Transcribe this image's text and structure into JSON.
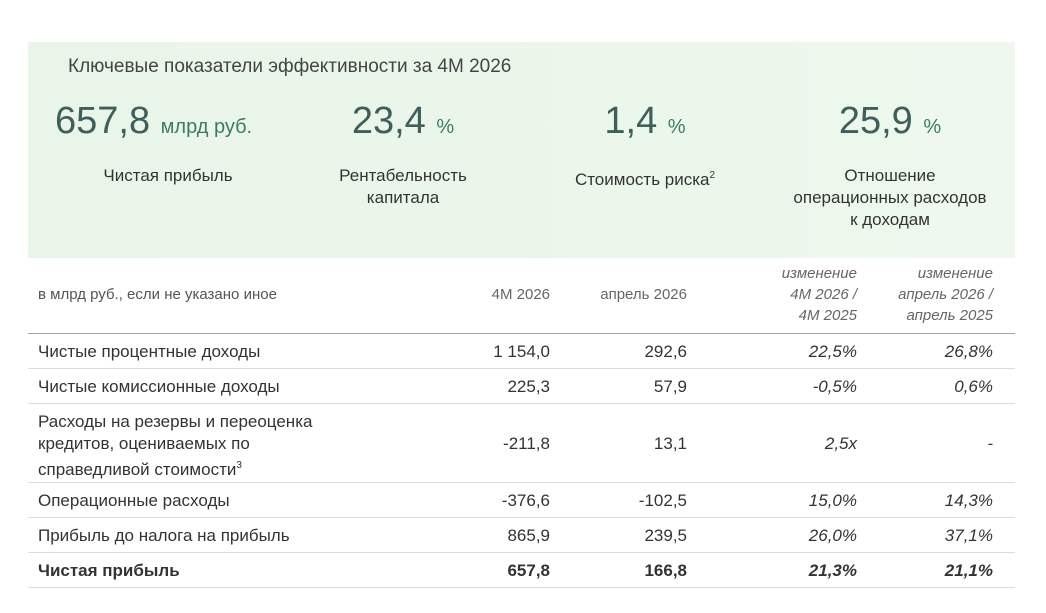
{
  "header": {
    "title": "Ключевые показатели эффективности за 4М 2026"
  },
  "kpis": [
    {
      "value": "657,8",
      "unit": "млрд руб.",
      "caption": [
        "Чистая прибыль"
      ]
    },
    {
      "value": "23,4",
      "unit": "%",
      "caption": [
        "Рентабельность",
        "капитала"
      ]
    },
    {
      "value": "1,4",
      "unit": "%",
      "caption": [
        "Стоимость риска"
      ],
      "note": "2"
    },
    {
      "value": "25,9",
      "unit": "%",
      "caption": [
        "Отношение",
        "операционных расходов",
        "к доходам"
      ]
    }
  ],
  "table": {
    "columns": [
      [
        "в млрд руб., если не указано иное"
      ],
      [
        "4М 2026"
      ],
      [
        "апрель 2026"
      ],
      [
        "изменение",
        "4М 2026 /",
        "4М 2025"
      ],
      [
        "изменение",
        "апрель 2026 /",
        "апрель 2025"
      ]
    ],
    "rows": [
      {
        "label": [
          "Чистые процентные доходы"
        ],
        "cells": [
          "1 154,0",
          "292,6",
          "22,5%",
          "26,8%"
        ]
      },
      {
        "label": [
          "Чистые комиссионные доходы"
        ],
        "cells": [
          "225,3",
          "57,9",
          "-0,5%",
          "0,6%"
        ]
      },
      {
        "label": [
          "Расходы на резервы и переоценка",
          "кредитов, оцениваемых по",
          "справедливой стоимости"
        ],
        "note": "3",
        "cells": [
          "-211,8",
          "13,1",
          "2,5x",
          "-"
        ]
      },
      {
        "label": [
          "Операционные расходы"
        ],
        "cells": [
          "-376,6",
          "-102,5",
          "15,0%",
          "14,3%"
        ]
      },
      {
        "label": [
          "Прибыль до налога на прибыль"
        ],
        "cells": [
          "865,9",
          "239,5",
          "26,0%",
          "37,1%"
        ]
      },
      {
        "label": [
          "Чистая прибыль"
        ],
        "cells": [
          "657,8",
          "166,8",
          "21,3%",
          "21,1%"
        ],
        "bold": true
      }
    ]
  }
}
